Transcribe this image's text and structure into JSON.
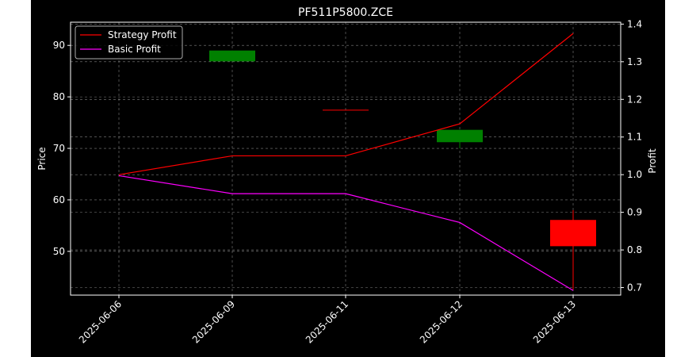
{
  "chart_data": {
    "type": "line",
    "title": "PF511P5800.ZCE",
    "categories": [
      "2025-06-06",
      "2025-06-09",
      "2025-06-11",
      "2025-06-12",
      "2025-06-13"
    ],
    "y_left": {
      "label": "Price",
      "lim": [
        41.5,
        94.5
      ],
      "ticks": [
        50,
        60,
        70,
        80,
        90
      ],
      "tick_labels": [
        "50",
        "60",
        "70",
        "80",
        "90"
      ]
    },
    "y_right": {
      "label": "Profit",
      "lim": [
        0.68,
        1.405
      ],
      "ticks": [
        0.7,
        0.8,
        0.9,
        1.0,
        1.1,
        1.2,
        1.3,
        1.4
      ],
      "tick_labels": [
        "0.7",
        "0.8",
        "0.9",
        "1.0",
        "1.1",
        "1.2",
        "1.3",
        "1.4"
      ]
    },
    "candles": [
      {
        "date": "2025-06-09",
        "open": 89.0,
        "close": 86.9,
        "high": 89.0,
        "low": 86.9,
        "color": "#008000"
      },
      {
        "date": "2025-06-11",
        "open": 77.5,
        "close": 77.5,
        "high": 77.5,
        "low": 77.5,
        "color": "#ff0000"
      },
      {
        "date": "2025-06-12",
        "open": 71.2,
        "close": 73.6,
        "high": 73.6,
        "low": 70.0,
        "color": "#008000"
      },
      {
        "date": "2025-06-13",
        "open": 56.1,
        "close": 51.0,
        "high": 58.0,
        "low": 42.6,
        "color": "#ff0000"
      }
    ],
    "series": [
      {
        "name": "Strategy Profit",
        "axis": "right",
        "color": "#ff0000",
        "values": [
          1.0,
          1.05,
          1.05,
          1.135,
          1.375
        ]
      },
      {
        "name": "Basic Profit",
        "axis": "left",
        "color": "#ff00ff",
        "values": [
          64.7,
          61.2,
          61.2,
          55.6,
          42.4
        ]
      }
    ],
    "grid": true,
    "legend": "top-left",
    "colors": {
      "background": "#000000",
      "axes": "#ffffff",
      "grid": "#808080"
    }
  }
}
